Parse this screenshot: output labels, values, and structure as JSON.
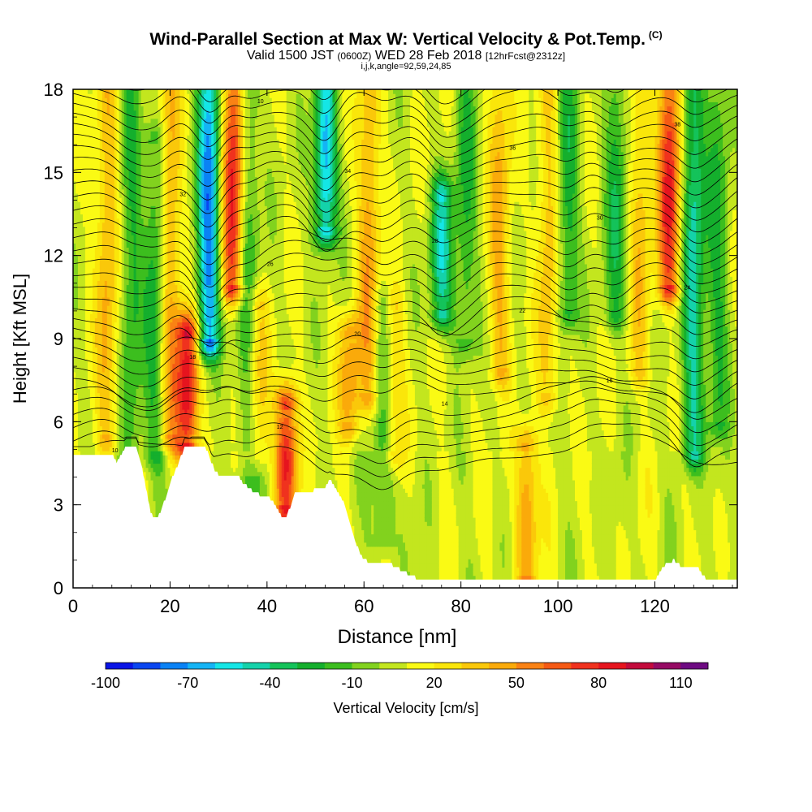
{
  "title": "Wind-Parallel Section at Max W: Vertical Velocity & Pot.Temp.",
  "copyright_mark": "(C)",
  "subtitle": {
    "valid": "Valid 1500 JST",
    "utc": "(0600Z)",
    "date": "WED 28 Feb 2018",
    "forecast": "[12hrFcst@2312z]"
  },
  "subtitle2": "i,j,k,angle=92,59,24,85",
  "chart_data": {
    "type": "heatmap",
    "xlabel": "Distance [nm]",
    "ylabel": "Height [Kft MSL]",
    "xlim": [
      0,
      137
    ],
    "ylim": [
      0,
      18
    ],
    "xticks": [
      0,
      20,
      40,
      60,
      80,
      100,
      120
    ],
    "yticks": [
      0,
      3,
      6,
      9,
      12,
      15,
      18
    ],
    "colorbar": {
      "label": "Vertical Velocity [cm/s]",
      "min": -100,
      "max": 120,
      "step": 10,
      "tick_values": [
        -100,
        -70,
        -40,
        -10,
        20,
        50,
        80,
        110
      ],
      "colors": [
        "#0a14e6",
        "#0a46f0",
        "#0a82f5",
        "#14b4f5",
        "#14e6e6",
        "#14d2aa",
        "#14c35a",
        "#14af2d",
        "#3cbe1e",
        "#82d21e",
        "#c3e61e",
        "#fafa14",
        "#fae60a",
        "#fac80a",
        "#faaa0a",
        "#fa8214",
        "#f55a14",
        "#f0321e",
        "#e6141e",
        "#c30a3c",
        "#960a64",
        "#6e0a82"
      ]
    },
    "theta_contour_labels": [
      "10",
      "12",
      "14",
      "16",
      "18",
      "20",
      "22",
      "24",
      "26",
      "28",
      "30",
      "32",
      "34",
      "36",
      "38"
    ],
    "terrain": [
      [
        0,
        4.8
      ],
      [
        8,
        4.8
      ],
      [
        9,
        4.5
      ],
      [
        10,
        4.8
      ],
      [
        11,
        5.1
      ],
      [
        13,
        5.1
      ],
      [
        14,
        4.5
      ],
      [
        15,
        3.6
      ],
      [
        16,
        2.7
      ],
      [
        17,
        2.5
      ],
      [
        18,
        2.7
      ],
      [
        19,
        3.2
      ],
      [
        20,
        3.8
      ],
      [
        22,
        4.6
      ],
      [
        23,
        5.1
      ],
      [
        27,
        5.1
      ],
      [
        28,
        4.8
      ],
      [
        29,
        4.3
      ],
      [
        30,
        4.1
      ],
      [
        34,
        4.1
      ],
      [
        35,
        3.8
      ],
      [
        37,
        3.5
      ],
      [
        39,
        3.3
      ],
      [
        41,
        3.2
      ],
      [
        42,
        2.9
      ],
      [
        43,
        2.6
      ],
      [
        44,
        2.6
      ],
      [
        45,
        3.0
      ],
      [
        46,
        3.5
      ],
      [
        49,
        3.5
      ],
      [
        52,
        3.6
      ],
      [
        53,
        3.9
      ],
      [
        54,
        3.6
      ],
      [
        55,
        3.3
      ],
      [
        56,
        3.0
      ],
      [
        57,
        2.4
      ],
      [
        58,
        1.8
      ],
      [
        59,
        1.3
      ],
      [
        60,
        1.0
      ],
      [
        62,
        0.9
      ],
      [
        65,
        0.9
      ],
      [
        68,
        0.6
      ],
      [
        70,
        0.4
      ],
      [
        72,
        0.3
      ],
      [
        120,
        0.3
      ],
      [
        122,
        0.8
      ],
      [
        124,
        1.0
      ],
      [
        126,
        0.7
      ],
      [
        129,
        0.7
      ],
      [
        130,
        0.4
      ],
      [
        131,
        0.3
      ],
      [
        137,
        0.3
      ]
    ],
    "updraft_cores": [
      {
        "x": 7,
        "ztop": 18,
        "zbot": 5.5,
        "peak": 35
      },
      {
        "x": 20,
        "ztop": 18,
        "zbot": 5.5,
        "peak": 40
      },
      {
        "x": 23.5,
        "ztop": 9,
        "zbot": 5.2,
        "peak": 82
      },
      {
        "x": 33,
        "ztop": 18,
        "zbot": 11,
        "peak": 80
      },
      {
        "x": 38,
        "ztop": 10,
        "zbot": 5,
        "peak": 30
      },
      {
        "x": 44,
        "ztop": 6.5,
        "zbot": 3,
        "peak": 75
      },
      {
        "x": 57,
        "ztop": 9,
        "zbot": 6,
        "peak": 40
      },
      {
        "x": 61,
        "ztop": 18,
        "zbot": 7,
        "peak": 40
      },
      {
        "x": 66,
        "ztop": 10,
        "zbot": 5,
        "peak": 30
      },
      {
        "x": 88,
        "ztop": 18,
        "zbot": 8,
        "peak": 35
      },
      {
        "x": 93.5,
        "ztop": 5,
        "zbot": 0.5,
        "peak": 45
      },
      {
        "x": 98,
        "ztop": 18,
        "zbot": 7,
        "peak": 30
      },
      {
        "x": 117,
        "ztop": 18,
        "zbot": 8,
        "peak": 30
      },
      {
        "x": 123,
        "ztop": 18,
        "zbot": 11,
        "peak": 75
      }
    ],
    "downdraft_cores": [
      {
        "x": 12,
        "ztop": 18,
        "zbot": 5,
        "peak": -30
      },
      {
        "x": 17,
        "ztop": 16,
        "zbot": 5,
        "peak": -35
      },
      {
        "x": 28,
        "ztop": 18,
        "zbot": 9,
        "peak": -85
      },
      {
        "x": 36,
        "ztop": 18,
        "zbot": 4,
        "peak": -30
      },
      {
        "x": 52,
        "ztop": 18,
        "zbot": 13,
        "peak": -75
      },
      {
        "x": 64,
        "ztop": 10,
        "zbot": 2,
        "peak": -30
      },
      {
        "x": 76,
        "ztop": 14,
        "zbot": 10,
        "peak": -55
      },
      {
        "x": 81,
        "ztop": 18,
        "zbot": 9,
        "peak": -30
      },
      {
        "x": 102,
        "ztop": 18,
        "zbot": 10,
        "peak": -35
      },
      {
        "x": 112,
        "ztop": 18,
        "zbot": 10,
        "peak": -35
      },
      {
        "x": 128,
        "ztop": 18,
        "zbot": 5,
        "peak": -55
      },
      {
        "x": 133,
        "ztop": 18,
        "zbot": 6,
        "peak": -30
      }
    ]
  }
}
